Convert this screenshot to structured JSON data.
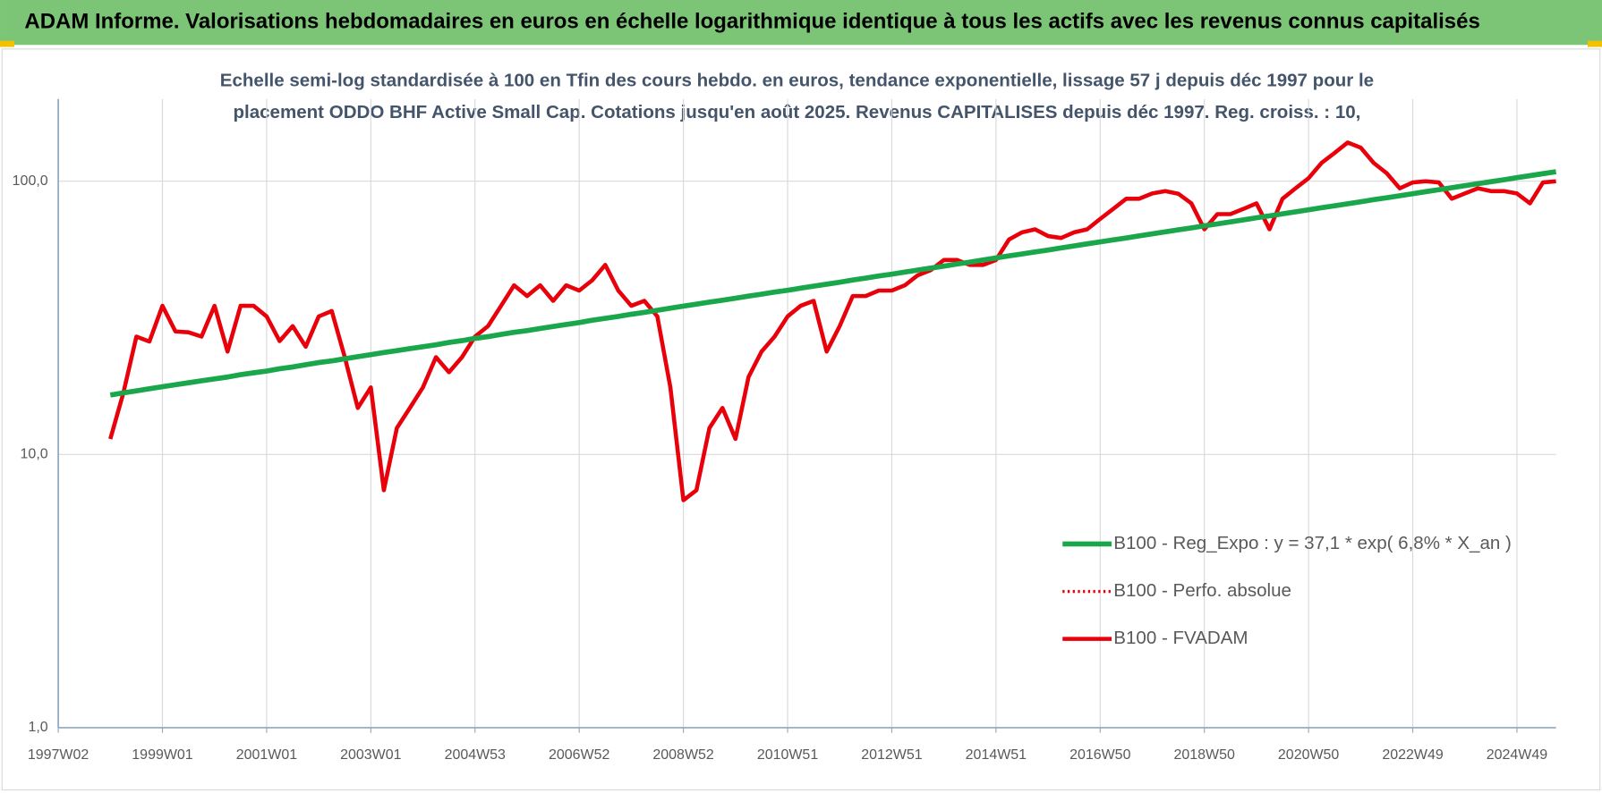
{
  "header": {
    "title": "ADAM Informe. Valorisations hebdomadaires en euros en échelle logarithmique identique à tous les actifs avec les revenus connus capitalisés"
  },
  "chart_data": {
    "type": "line",
    "title": [
      "Echelle semi-log standardisée à 100 en Tfin des cours hebdo. en euros, tendance exponentielle, lissage 57 j depuis déc 1997 pour le",
      "placement ODDO BHF Active Small Cap. Cotations jusqu'en août 2025. Revenus CAPITALISES depuis déc 1997. Reg. croiss. : 10,"
    ],
    "log_scale": true,
    "grid": true,
    "legend": "right",
    "ylim": [
      1,
      200
    ],
    "yticks": [
      {
        "value": 1,
        "label": "1,0"
      },
      {
        "value": 10,
        "label": "10,0"
      },
      {
        "value": 100,
        "label": "100,0"
      }
    ],
    "categories": [
      "1997W02",
      null,
      null,
      null,
      null,
      null,
      null,
      null,
      "1999W01",
      null,
      null,
      null,
      null,
      null,
      null,
      null,
      "2001W01",
      null,
      null,
      null,
      null,
      null,
      null,
      null,
      "2003W01",
      null,
      null,
      null,
      null,
      null,
      null,
      null,
      "2004W53",
      null,
      null,
      null,
      null,
      null,
      null,
      null,
      "2006W52",
      null,
      null,
      null,
      null,
      null,
      null,
      null,
      "2008W52",
      null,
      null,
      null,
      null,
      null,
      null,
      null,
      "2010W51",
      null,
      null,
      null,
      null,
      null,
      null,
      null,
      "2012W51",
      null,
      null,
      null,
      null,
      null,
      null,
      null,
      "2014W51",
      null,
      null,
      null,
      null,
      null,
      null,
      null,
      "2016W50",
      null,
      null,
      null,
      null,
      null,
      null,
      null,
      "2018W50",
      null,
      null,
      null,
      null,
      null,
      null,
      null,
      "2020W50",
      null,
      null,
      null,
      null,
      null,
      null,
      null,
      "2022W49",
      null,
      null,
      null,
      null,
      null,
      null,
      null,
      "2024W49",
      null,
      null,
      null
    ],
    "series": [
      {
        "name": "B100 - Reg_Expo : y = 37,1 * exp( 6,8% *  X_an )",
        "color": "#1aa64a",
        "style": "solid",
        "width": 5,
        "values": [
          null,
          null,
          null,
          null,
          16.5,
          16.8,
          17.1,
          17.4,
          17.7,
          18.0,
          18.3,
          18.6,
          18.9,
          19.2,
          19.6,
          19.9,
          20.2,
          20.6,
          20.9,
          21.3,
          21.7,
          22.0,
          22.4,
          22.8,
          23.2,
          23.6,
          24.0,
          24.4,
          24.8,
          25.2,
          25.7,
          26.1,
          26.6,
          27.0,
          27.5,
          28.0,
          28.4,
          28.9,
          29.4,
          29.9,
          30.4,
          31.0,
          31.5,
          32.0,
          32.6,
          33.1,
          33.7,
          34.3,
          34.9,
          35.5,
          36.1,
          36.7,
          37.3,
          38.0,
          38.6,
          39.3,
          39.9,
          40.6,
          41.3,
          42.0,
          42.7,
          43.5,
          44.2,
          45.0,
          45.7,
          46.5,
          47.3,
          48.1,
          48.9,
          49.8,
          50.6,
          51.5,
          52.4,
          53.3,
          54.2,
          55.1,
          56.0,
          57.0,
          58.0,
          59.0,
          60.0,
          61.0,
          62.0,
          63.1,
          64.2,
          65.3,
          66.4,
          67.5,
          68.7,
          69.8,
          71.0,
          72.2,
          73.5,
          74.7,
          76.0,
          77.3,
          78.6,
          80.0,
          81.3,
          82.7,
          84.1,
          85.6,
          87.0,
          88.5,
          90.0,
          91.6,
          93.1,
          94.7,
          96.3,
          98.0,
          99.6,
          101.3,
          103.1,
          104.8,
          106.6,
          108.4
        ]
      },
      {
        "name": "B100 - Perfo. absolue",
        "color": "#e8000b",
        "style": "dotted",
        "width": 3,
        "values": [
          null,
          null,
          null,
          null,
          11.4,
          16.8,
          27.0,
          25.9,
          35,
          28.2,
          28,
          27,
          35,
          23.8,
          35,
          35,
          32,
          26,
          29.5,
          24.8,
          32,
          33.5,
          22.7,
          14.8,
          17.6,
          7.4,
          12.5,
          14.8,
          17.6,
          22.7,
          20,
          22.7,
          27,
          29.5,
          35,
          41.6,
          38,
          41.6,
          36.5,
          41.6,
          39.8,
          43.4,
          49.4,
          39.8,
          35,
          36.5,
          32,
          17.6,
          6.8,
          7.4,
          12.5,
          14.8,
          11.4,
          19.2,
          23.8,
          27,
          32,
          35,
          36.5,
          23.8,
          29.5,
          38,
          38,
          39.8,
          39.8,
          41.6,
          45.3,
          47.3,
          51.5,
          51.5,
          49.4,
          49.4,
          51.5,
          61.2,
          65,
          66.7,
          63,
          62,
          65,
          66.7,
          72.8,
          79.2,
          86.3,
          86.3,
          90.2,
          92,
          90,
          83,
          66.7,
          75.8,
          75.8,
          79.2,
          83,
          66.7,
          86.3,
          94.2,
          102.6,
          116.7,
          127,
          138.6,
          132.8,
          116.7,
          107,
          94.2,
          99,
          100,
          99,
          86.3,
          90.2,
          94.2,
          92,
          92,
          90.2,
          83,
          99,
          100
        ]
      },
      {
        "name": "B100 - FVADAM",
        "color": "#e8000b",
        "style": "solid",
        "width": 4,
        "values": [
          null,
          null,
          null,
          null,
          11.4,
          16.8,
          27.0,
          25.9,
          35,
          28.2,
          28,
          27,
          35,
          23.8,
          35,
          35,
          32,
          26,
          29.5,
          24.8,
          32,
          33.5,
          22.7,
          14.8,
          17.6,
          7.4,
          12.5,
          14.8,
          17.6,
          22.7,
          20,
          22.7,
          27,
          29.5,
          35,
          41.6,
          38,
          41.6,
          36.5,
          41.6,
          39.8,
          43.4,
          49.4,
          39.8,
          35,
          36.5,
          32,
          17.6,
          6.8,
          7.4,
          12.5,
          14.8,
          11.4,
          19.2,
          23.8,
          27,
          32,
          35,
          36.5,
          23.8,
          29.5,
          38,
          38,
          39.8,
          39.8,
          41.6,
          45.3,
          47.3,
          51.5,
          51.5,
          49.4,
          49.4,
          51.5,
          61.2,
          65,
          66.7,
          63,
          62,
          65,
          66.7,
          72.8,
          79.2,
          86.3,
          86.3,
          90.2,
          92,
          90,
          83,
          66.7,
          75.8,
          75.8,
          79.2,
          83,
          66.7,
          86.3,
          94.2,
          102.6,
          116.7,
          127,
          138.6,
          132.8,
          116.7,
          107,
          94.2,
          99,
          100,
          99,
          86.3,
          90.2,
          94.2,
          92,
          92,
          90.2,
          83,
          99,
          100
        ]
      }
    ]
  }
}
